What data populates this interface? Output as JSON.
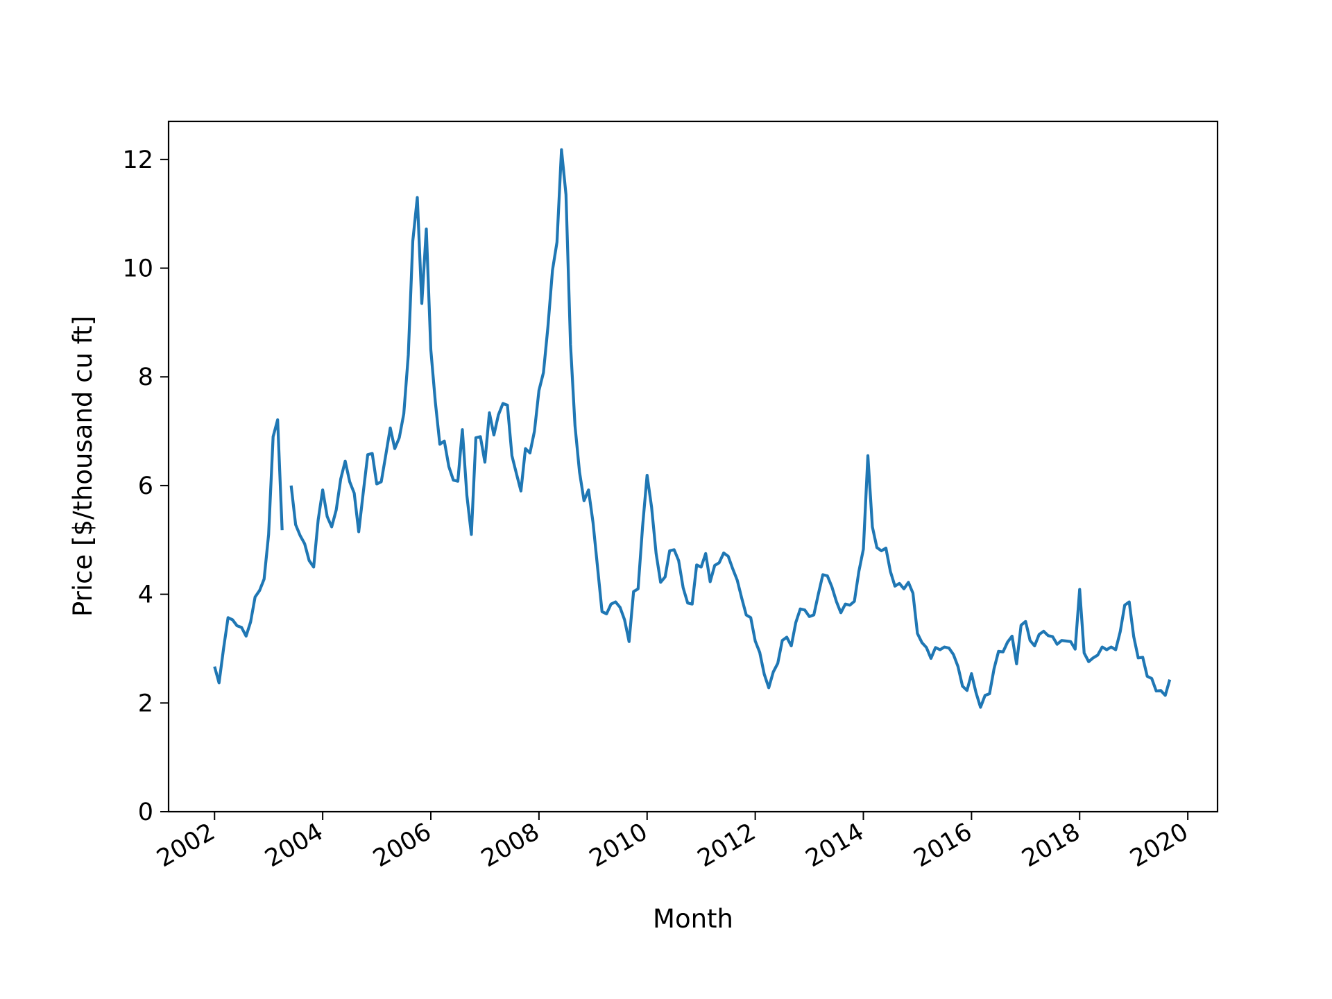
{
  "chart_data": {
    "type": "line",
    "title": "",
    "xlabel": "Month",
    "ylabel": "Price [$/thousand cu ft]",
    "xlim": [
      2001.15,
      2020.55
    ],
    "ylim": [
      0,
      12.7
    ],
    "x_ticks": [
      2002,
      2004,
      2006,
      2008,
      2010,
      2012,
      2014,
      2016,
      2018,
      2020
    ],
    "x_tick_labels": [
      "2002",
      "2004",
      "2006",
      "2008",
      "2010",
      "2012",
      "2014",
      "2016",
      "2018",
      "2020"
    ],
    "y_ticks": [
      0,
      2,
      4,
      6,
      8,
      10,
      12
    ],
    "y_tick_labels": [
      "0",
      "2",
      "4",
      "6",
      "8",
      "10",
      "12"
    ],
    "grid": false,
    "legend": "none",
    "series": [
      {
        "color": "#1f77b4",
        "start": "2002-01",
        "frequency": "monthly",
        "values": [
          2.67,
          2.37,
          3.0,
          3.57,
          3.53,
          3.42,
          3.39,
          3.23,
          3.49,
          3.95,
          4.07,
          4.28,
          5.1,
          6.9,
          7.21,
          5.18,
          null,
          6.0,
          5.28,
          5.08,
          4.93,
          4.62,
          4.5,
          5.37,
          5.92,
          5.43,
          5.24,
          5.55,
          6.12,
          6.45,
          6.07,
          5.86,
          5.15,
          5.87,
          6.57,
          6.59,
          6.03,
          6.07,
          6.56,
          7.06,
          6.68,
          6.88,
          7.32,
          8.4,
          10.5,
          11.3,
          9.35,
          10.72,
          8.5,
          7.54,
          6.76,
          6.82,
          6.35,
          6.1,
          6.08,
          7.03,
          5.82,
          5.1,
          6.88,
          6.9,
          6.43,
          7.34,
          6.93,
          7.3,
          7.51,
          7.48,
          6.55,
          6.22,
          5.9,
          6.68,
          6.6,
          7.0,
          7.75,
          8.08,
          8.93,
          9.96,
          10.48,
          12.18,
          11.35,
          8.6,
          7.1,
          6.25,
          5.72,
          5.92,
          5.32,
          4.5,
          3.68,
          3.64,
          3.82,
          3.86,
          3.76,
          3.53,
          3.13,
          4.05,
          4.1,
          5.25,
          6.19,
          5.6,
          4.75,
          4.22,
          4.32,
          4.8,
          4.82,
          4.62,
          4.12,
          3.84,
          3.82,
          4.54,
          4.5,
          4.75,
          4.23,
          4.53,
          4.58,
          4.76,
          4.7,
          4.47,
          4.26,
          3.93,
          3.62,
          3.57,
          3.14,
          2.93,
          2.53,
          2.28,
          2.57,
          2.73,
          3.15,
          3.21,
          3.05,
          3.48,
          3.73,
          3.71,
          3.59,
          3.62,
          4.0,
          4.36,
          4.34,
          4.14,
          3.87,
          3.66,
          3.82,
          3.8,
          3.87,
          4.42,
          4.83,
          6.55,
          5.24,
          4.86,
          4.8,
          4.85,
          4.42,
          4.15,
          4.2,
          4.1,
          4.22,
          4.02,
          3.28,
          3.11,
          3.02,
          2.82,
          3.02,
          2.98,
          3.03,
          3.01,
          2.89,
          2.67,
          2.31,
          2.23,
          2.54,
          2.19,
          1.92,
          2.14,
          2.17,
          2.63,
          2.95,
          2.94,
          3.12,
          3.23,
          2.72,
          3.43,
          3.5,
          3.15,
          3.05,
          3.26,
          3.32,
          3.24,
          3.22,
          3.08,
          3.15,
          3.14,
          3.13,
          2.99,
          4.09,
          2.92,
          2.76,
          2.83,
          2.88,
          3.03,
          2.98,
          3.03,
          2.98,
          3.31,
          3.8,
          3.86,
          3.22,
          2.83,
          2.84,
          2.49,
          2.45,
          2.22,
          2.23,
          2.14,
          2.43
        ]
      }
    ]
  }
}
